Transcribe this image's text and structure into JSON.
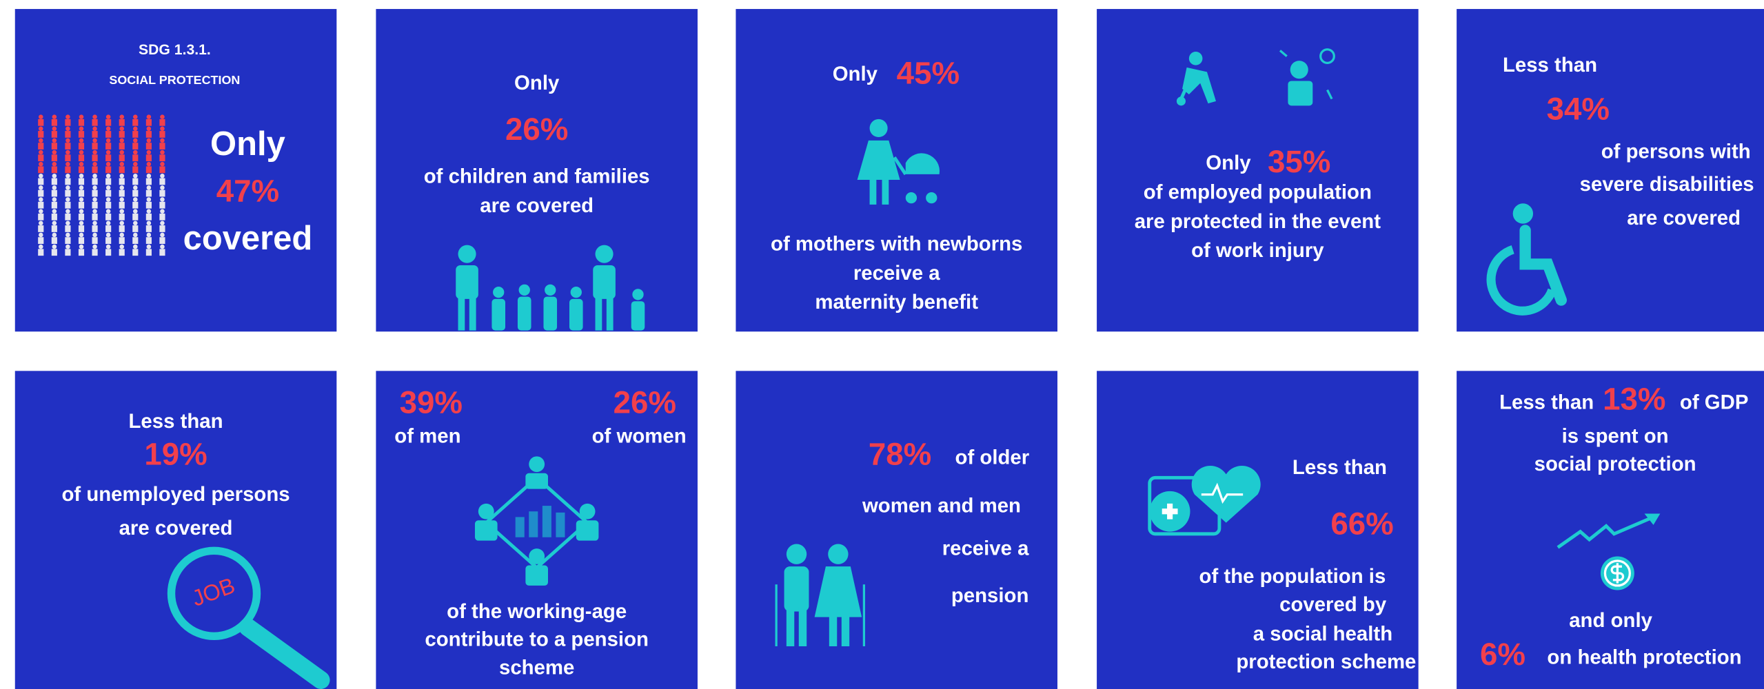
{
  "tiles": [
    {
      "lines": [
        "SDG 1.3.1.",
        "SOCIAL PROTECTION",
        "Only",
        "47%",
        "covered"
      ]
    },
    {
      "lines": [
        "Only",
        "26%",
        "of children and families",
        "are covered"
      ]
    },
    {
      "lines": [
        "Only",
        "45%",
        "of mothers with newborns",
        "receive a",
        "maternity benefit"
      ]
    },
    {
      "lines": [
        "Only",
        "35%",
        "of employed population",
        "are protected in the event",
        "of work injury"
      ]
    },
    {
      "lines": [
        "Less than",
        "34%",
        "of persons with",
        "severe disabilities",
        "are covered"
      ]
    },
    {
      "lines": [
        "Less than",
        "19%",
        "of unemployed persons",
        "are covered",
        "JOB"
      ]
    },
    {
      "lines": [
        "39%",
        "of men",
        "26%",
        "of women",
        "of the working-age",
        "contribute to a pension",
        "scheme"
      ]
    },
    {
      "lines": [
        "78%",
        "of older",
        "women and men",
        "receive a",
        "pension"
      ]
    },
    {
      "lines": [
        "Less than",
        "66%",
        "of the population is",
        "covered by",
        "a social health",
        "protection scheme"
      ]
    },
    {
      "lines": [
        "Less than",
        "13%",
        "of GDP",
        "is spent on",
        "social protection",
        "and only",
        "6%",
        "on health protection"
      ]
    }
  ]
}
